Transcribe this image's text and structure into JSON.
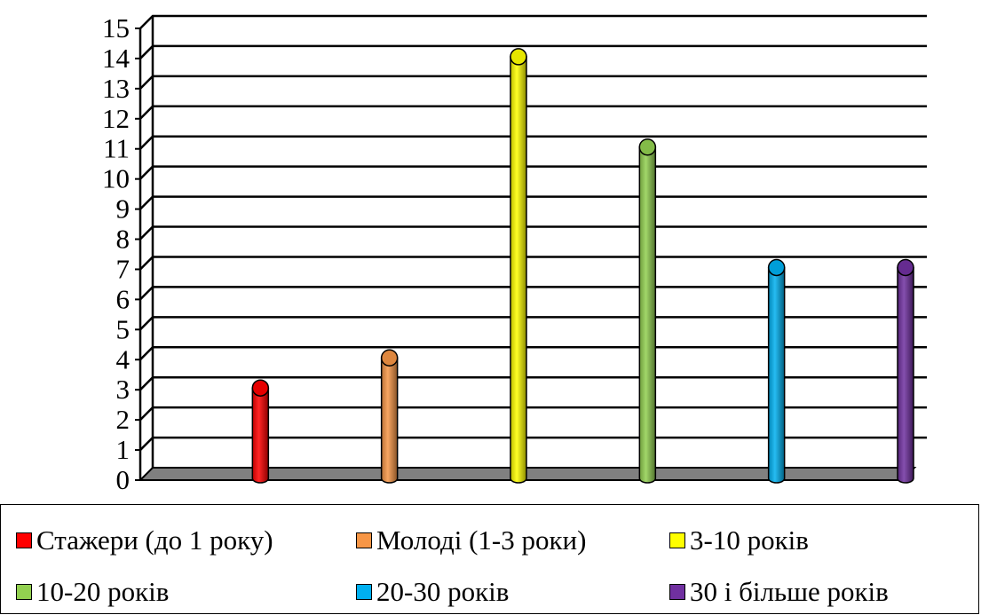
{
  "chart_data": {
    "type": "bar",
    "categories": [
      "Стажери (до 1 року)",
      "Молоді (1-3 роки)",
      "3-10 років",
      "10-20 років",
      "20-30 років",
      "30 і більше років"
    ],
    "values": [
      3,
      4,
      14,
      11,
      7,
      7
    ],
    "colors": [
      "#ff0000",
      "#f79646",
      "#ffff00",
      "#92d050",
      "#00b0f0",
      "#7030a0"
    ],
    "ylim": [
      0,
      15
    ],
    "yticks": [
      "0",
      "1",
      "2",
      "3",
      "4",
      "5",
      "6",
      "7",
      "8",
      "9",
      "10",
      "11",
      "12",
      "13",
      "14",
      "15"
    ],
    "grid": true,
    "legend_position": "bottom",
    "title": "",
    "xlabel": "",
    "ylabel": ""
  },
  "legend": {
    "items": [
      {
        "label": "Стажери (до 1 року)",
        "color": "#ff0000"
      },
      {
        "label": "Молоді (1-3 роки)",
        "color": "#f79646"
      },
      {
        "label": "3-10 років",
        "color": "#ffff00"
      },
      {
        "label": "10-20 років",
        "color": "#92d050"
      },
      {
        "label": "20-30 років",
        "color": "#00b0f0"
      },
      {
        "label": "30 і більше років",
        "color": "#7030a0"
      }
    ]
  }
}
